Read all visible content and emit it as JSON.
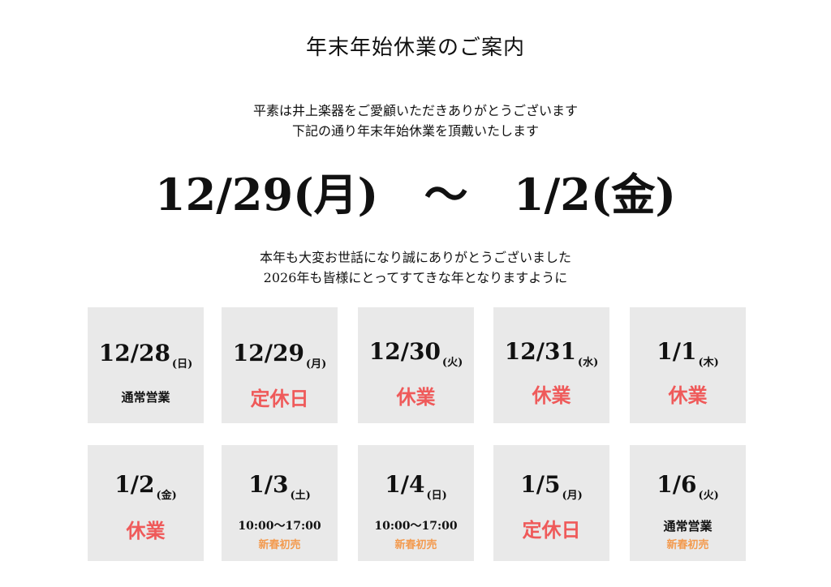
{
  "colors": {
    "background": "#ffffff",
    "card_background": "#e9e9e9",
    "text": "#111111",
    "closed": "#ef5a5a",
    "sale": "#f39a4e"
  },
  "title": "年末年始休業のご案内",
  "intro": {
    "line1": "平素は井上楽器をご愛顧いただきありがとうございます",
    "line2": "下記の通り年末年始休業を頂戴いたします"
  },
  "range": {
    "start": "12/29(月)",
    "separator": "～",
    "end": "1/2(金)"
  },
  "outro": {
    "line1": "本年も大変お世話になり誠にありがとうございました",
    "line2": "2026年も皆様にとってすてきな年となりますように"
  },
  "days": [
    {
      "date": "12/28",
      "dow": "(日)",
      "status": "通常営業",
      "status_type": "normal",
      "hours": "",
      "sale": ""
    },
    {
      "date": "12/29",
      "dow": "(月)",
      "status": "定休日",
      "status_type": "closed",
      "hours": "",
      "sale": ""
    },
    {
      "date": "12/30",
      "dow": "(火)",
      "status": "休業",
      "status_type": "closed",
      "hours": "",
      "sale": ""
    },
    {
      "date": "12/31",
      "dow": "(水)",
      "status": "休業",
      "status_type": "closed",
      "hours": "",
      "sale": ""
    },
    {
      "date": "1/1",
      "dow": "(木)",
      "status": "休業",
      "status_type": "closed",
      "hours": "",
      "sale": ""
    },
    {
      "date": "1/2",
      "dow": "(金)",
      "status": "休業",
      "status_type": "closed",
      "hours": "",
      "sale": ""
    },
    {
      "date": "1/3",
      "dow": "(土)",
      "status": "",
      "status_type": "hours",
      "hours": "10:00～17:00",
      "sale": "新春初売"
    },
    {
      "date": "1/4",
      "dow": "(日)",
      "status": "",
      "status_type": "hours",
      "hours": "10:00～17:00",
      "sale": "新春初売"
    },
    {
      "date": "1/5",
      "dow": "(月)",
      "status": "定休日",
      "status_type": "closed",
      "hours": "",
      "sale": ""
    },
    {
      "date": "1/6",
      "dow": "(火)",
      "status": "通常営業",
      "status_type": "normal",
      "hours": "",
      "sale": "新春初売"
    }
  ]
}
